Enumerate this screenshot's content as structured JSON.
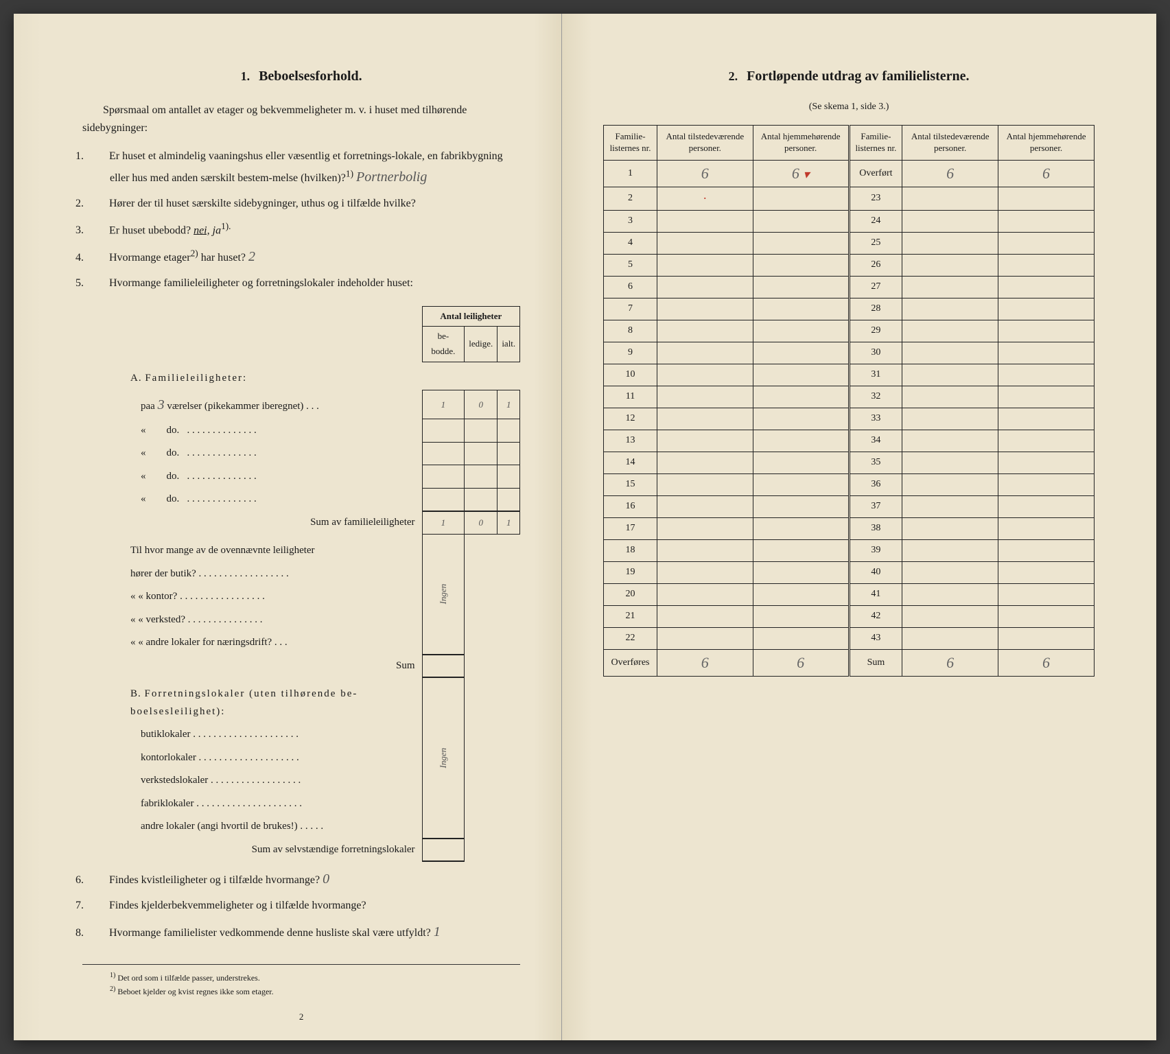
{
  "left": {
    "section_number": "1.",
    "section_title": "Beboelsesforhold.",
    "intro": "Spørsmaal om antallet av etager og bekvemmeligheter m. v. i huset med tilhørende sidebygninger:",
    "questions": {
      "q1_num": "1.",
      "q1_text_a": "Er huset et almindelig vaaningshus eller væsentlig et forretnings-lokale, en fabrikbygning eller hus med anden særskilt bestem-melse (hvilken)?",
      "q1_sup": "1)",
      "q1_answer": "Portnerbolig",
      "q2_num": "2.",
      "q2_text": "Hører der til huset særskilte sidebygninger, uthus og i tilfælde hvilke?",
      "q3_num": "3.",
      "q3_text": "Er huset ubebodd?",
      "q3_em_a": "nei,",
      "q3_em_b": "ja",
      "q3_sup": "1).",
      "q4_num": "4.",
      "q4_text": "Hvormange etager",
      "q4_sup": "2)",
      "q4_text_b": " har huset?",
      "q4_answer": "2",
      "q5_num": "5.",
      "q5_text": "Hvormange familieleiligheter og forretningslokaler indeholder huset:",
      "q6_num": "6.",
      "q6_text": "Findes kvistleiligheter og i tilfælde hvormange?",
      "q6_answer": "0",
      "q7_num": "7.",
      "q7_text": "Findes kjelderbekvemmeligheter og i tilfælde hvormange?",
      "q8_num": "8.",
      "q8_text": "Hvormange familielister vedkommende denne husliste skal være utfyldt?",
      "q8_answer": "1"
    },
    "leil": {
      "top_header": "Antal leiligheter",
      "col_bebodde": "be-bodde.",
      "col_ledige": "ledige.",
      "col_ialt": "ialt.",
      "groupA_label": "A.",
      "groupA_title": "Familieleiligheter:",
      "rowA1_label": "paa",
      "rowA1_rooms": "3",
      "rowA1_suffix": "værelser (pikekammer iberegnet) . . .",
      "rowA1_be": "1",
      "rowA1_le": "0",
      "rowA1_ia": "1",
      "row_do": "do.",
      "row_dots": ". . . . . . . . . . . . . .",
      "sumA_label": "Sum av familieleiligheter",
      "sumA_be": "1",
      "sumA_le": "0",
      "sumA_ia": "1",
      "mid_q": "Til hvor mange av de ovennævnte leiligheter",
      "mid_butik": "hører der butik? . . . . . . . . . . . . . . . . . .",
      "mid_kontor": "«    « kontor? . . . . . . . . . . . . . . . . .",
      "mid_verksted": "«    « verksted? . . . . . . . . . . . . . . .",
      "mid_andre": "«    « andre lokaler for næringsdrift? . . .",
      "mid_sum": "Sum",
      "mid_answer": "Ingen",
      "groupB_label": "B.",
      "groupB_title": "Forretningslokaler (uten tilhørende be-boelsesleilighet):",
      "b_butik": "butiklokaler . . . . . . . . . . . . . . . . . . . . .",
      "b_kontor": "kontorlokaler . . . . . . . . . . . . . . . . . . . .",
      "b_verksted": "verkstedslokaler . . . . . . . . . . . . . . . . . .",
      "b_fabrik": "fabriklokaler . . . . . . . . . . . . . . . . . . . . .",
      "b_andre": "andre lokaler (angi hvortil de brukes!) . . . . .",
      "b_answer": "Ingen",
      "sumB_label": "Sum av selvstændige forretningslokaler"
    },
    "footnotes": {
      "f1_num": "1)",
      "f1_text": "Det ord som i tilfælde passer, understrekes.",
      "f2_num": "2)",
      "f2_text": "Beboet kjelder og kvist regnes ikke som etager."
    },
    "pagenum": "2"
  },
  "right": {
    "section_number": "2.",
    "section_title": "Fortløpende utdrag av familielisterne.",
    "subtitle": "(Se skema 1, side 3.)",
    "headers": {
      "col1": "Familie-listernes nr.",
      "col2": "Antal tilstedeværende personer.",
      "col3": "Antal hjemmehørende personer.",
      "col4": "Familie-listernes nr.",
      "col5": "Antal tilstedeværende personer.",
      "col6": "Antal hjemmehørende personer."
    },
    "overfort": "Overført",
    "overfores": "Overføres",
    "sum": "Sum",
    "row1_nr": "1",
    "row1_a": "6",
    "row1_b": "6",
    "overfort_a": "6",
    "overfort_b": "6",
    "overfores_a": "6",
    "overfores_b": "6",
    "sum_a": "6",
    "sum_b": "6",
    "left_nrs": [
      "1",
      "2",
      "3",
      "4",
      "5",
      "6",
      "7",
      "8",
      "9",
      "10",
      "11",
      "12",
      "13",
      "14",
      "15",
      "16",
      "17",
      "18",
      "19",
      "20",
      "21",
      "22"
    ],
    "right_nrs": [
      "23",
      "24",
      "25",
      "26",
      "27",
      "28",
      "29",
      "30",
      "31",
      "32",
      "33",
      "34",
      "35",
      "36",
      "37",
      "38",
      "39",
      "40",
      "41",
      "42",
      "43"
    ]
  },
  "colors": {
    "paper": "#ede5d0",
    "ink": "#1a1a1a",
    "pencil": "#666666",
    "red": "#c0392b"
  }
}
